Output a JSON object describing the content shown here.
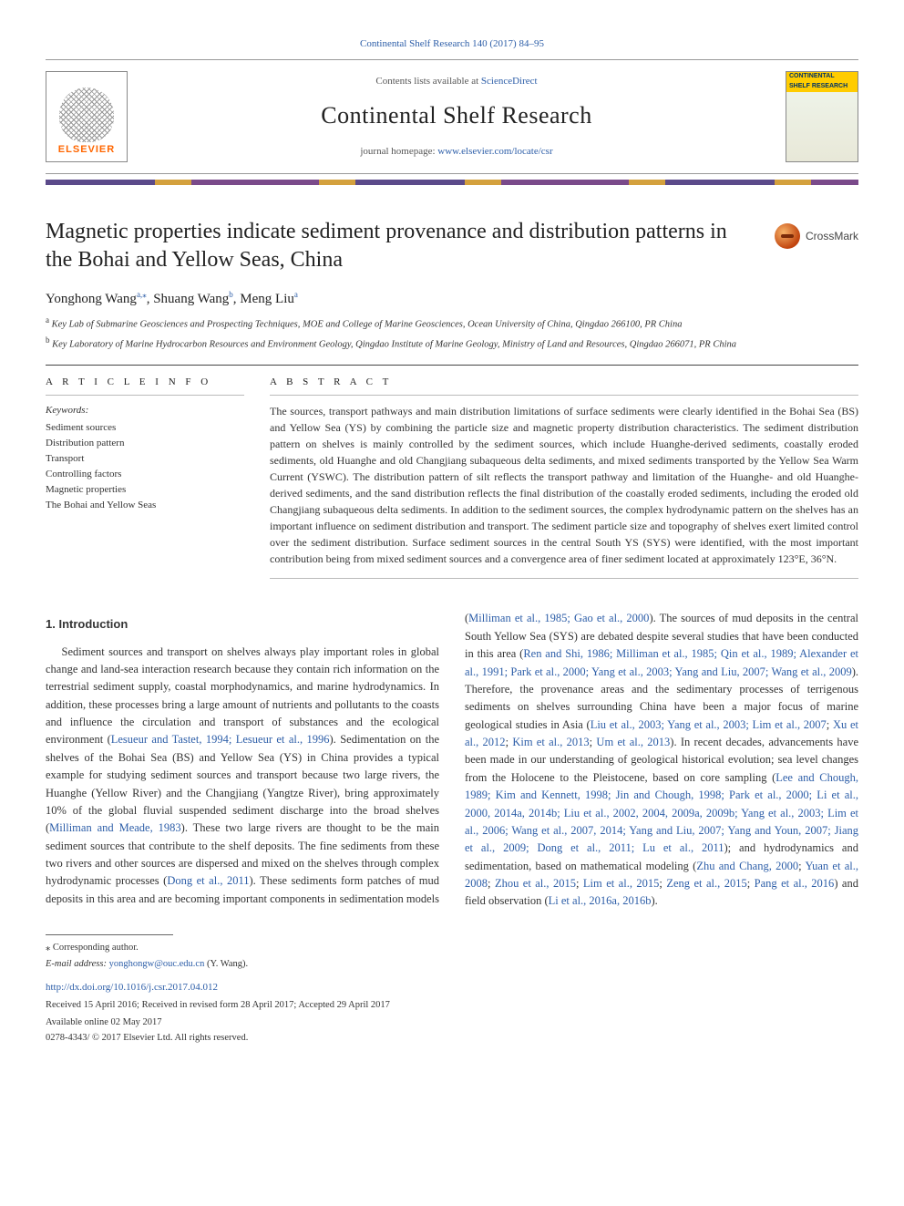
{
  "journal": {
    "citation_top": "Continental Shelf Research 140 (2017) 84–95",
    "contents_prefix": "Contents lists available at ",
    "contents_link": "ScienceDirect",
    "name": "Continental Shelf Research",
    "homepage_prefix": "journal homepage: ",
    "homepage_url": "www.elsevier.com/locate/csr",
    "publisher_brand": "ELSEVIER",
    "cover_label": "CONTINENTAL SHELF RESEARCH",
    "crossmark_label": "CrossMark"
  },
  "article": {
    "title": "Magnetic properties indicate sediment provenance and distribution patterns in the Bohai and Yellow Seas, China",
    "authors_html": "Yonghong Wang<a><sup class=\"ref\">a,</sup></a><a><sup class=\"ref\">⁎</sup></a>, Shuang Wang<a><sup class=\"ref\">b</sup></a>, Meng Liu<a><sup class=\"ref\">a</sup></a>",
    "affiliations": [
      {
        "mark": "a",
        "text": "Key Lab of Submarine Geosciences and Prospecting Techniques, MOE and College of Marine Geosciences, Ocean University of China, Qingdao 266100, PR China"
      },
      {
        "mark": "b",
        "text": "Key Laboratory of Marine Hydrocarbon Resources and Environment Geology, Qingdao Institute of Marine Geology, Ministry of Land and Resources, Qingdao 266071, PR China"
      }
    ],
    "article_info_head": "A R T I C L E   I N F O",
    "abstract_head": "A B S T R A C T",
    "keywords_label": "Keywords:",
    "keywords": [
      "Sediment sources",
      "Distribution pattern",
      "Transport",
      "Controlling factors",
      "Magnetic properties",
      "The Bohai and Yellow Seas"
    ],
    "abstract": "The sources, transport pathways and main distribution limitations of surface sediments were clearly identified in the Bohai Sea (BS) and Yellow Sea (YS) by combining the particle size and magnetic property distribution characteristics. The sediment distribution pattern on shelves is mainly controlled by the sediment sources, which include Huanghe-derived sediments, coastally eroded sediments, old Huanghe and old Changjiang subaqueous delta sediments, and mixed sediments transported by the Yellow Sea Warm Current (YSWC). The distribution pattern of silt reflects the transport pathway and limitation of the Huanghe- and old Huanghe-derived sediments, and the sand distribution reflects the final distribution of the coastally eroded sediments, including the eroded old Changjiang subaqueous delta sediments. In addition to the sediment sources, the complex hydrodynamic pattern on the shelves has an important influence on sediment distribution and transport. The sediment particle size and topography of shelves exert limited control over the sediment distribution. Surface sediment sources in the central South YS (SYS) were identified, with the most important contribution being from mixed sediment sources and a convergence area of finer sediment located at approximately 123°E, 36°N.",
    "section1_head": "1. Introduction",
    "body_p1": "Sediment sources and transport on shelves always play important roles in global change and land-sea interaction research because they contain rich information on the terrestrial sediment supply, coastal morphodynamics, and marine hydrodynamics. In addition, these processes bring a large amount of nutrients and pollutants to the coasts and influence the circulation and transport of substances and the ecological environment (",
    "cite1": "Lesueur and Tastet, 1994; Lesueur et al., 1996",
    "body_p1b": "). Sedimentation on the shelves of the Bohai Sea (BS) and Yellow Sea (YS) in China provides a typical example for studying sediment sources and transport because two large rivers, the Huanghe (Yellow River) and the Changjiang (Yangtze River), bring approximately 10% of the global fluvial suspended sediment discharge into the broad shelves (",
    "cite2": "Milliman and Meade, 1983",
    "body_p1c": "). These two large rivers are thought to be the main sediment sources that contribute to the shelf deposits. The fine sediments from these two rivers and other sources are dispersed and mixed on the shelves through complex hydrodynamic processes (",
    "cite3": "Dong et al., 2011",
    "body_p1d": "). These sediments form patches of mud deposits in this area and are becoming important components in sedimentation ",
    "body_p2a": "models (",
    "cite4": "Milliman et al., 1985; Gao et al., 2000",
    "body_p2b": "). The sources of mud deposits in the central South Yellow Sea (SYS) are debated despite several studies that have been conducted in this area (",
    "cite5": "Ren and Shi, 1986; Milliman et al., 1985; Qin et al., 1989; Alexander et al., 1991; Park et al., 2000; Yang et al., 2003; Yang and Liu, 2007; Wang et al., 2009",
    "body_p2c": "). Therefore, the provenance areas and the sedimentary processes of terrigenous sediments on shelves surrounding China have been a major focus of marine geological studies in Asia (",
    "cite6": "Liu et al., 2003; Yang et al., 2003; Lim et al., 2007",
    "body_p2d": "; ",
    "cite7": "Xu et al., 2012",
    "body_p2e": "; ",
    "cite8": "Kim et al., 2013",
    "body_p2f": "; ",
    "cite9": "Um et al., 2013",
    "body_p2g": "). In recent decades, advancements have been made in our understanding of geological historical evolution; sea level changes from the Holocene to the Pleistocene, based on core sampling (",
    "cite10": "Lee and Chough, 1989; Kim and Kennett, 1998; Jin and Chough, 1998; Park et al., 2000; Li et al., 2000, 2014a, 2014b; Liu et al., 2002, 2004, 2009a, 2009b; Yang et al., 2003; Lim et al., 2006; Wang et al., 2007, 2014; Yang and Liu, 2007; Yang and Youn, 2007; Jiang et al., 2009; Dong et al., 2011; Lu et al., 2011",
    "body_p2h": "); and hydrodynamics and sedimentation, based on mathematical modeling (",
    "cite11": "Zhu and Chang, 2000",
    "body_p2i": "; ",
    "cite12": "Yuan et al., 2008",
    "body_p2j": "; ",
    "cite13": "Zhou et al., 2015",
    "body_p2k": "; ",
    "cite14": "Lim et al., 2015",
    "body_p2l": "; ",
    "cite15": "Zeng et al., 2015",
    "body_p2m": "; ",
    "cite16": "Pang et al., 2016",
    "body_p2n": ") and field observation (",
    "cite17": "Li et al., 2016a, 2016b",
    "body_p2o": ")."
  },
  "footer": {
    "corresponding": "⁎ Corresponding author.",
    "email_label": "E-mail address: ",
    "email": "yonghongw@ouc.edu.cn",
    "email_suffix": " (Y. Wang).",
    "doi": "http://dx.doi.org/10.1016/j.csr.2017.04.012",
    "history": "Received 15 April 2016; Received in revised form 28 April 2017; Accepted 29 April 2017",
    "online": "Available online 02 May 2017",
    "copyright": "0278-4343/ © 2017 Elsevier Ltd. All rights reserved."
  },
  "colors": {
    "link": "#2d5ea8",
    "publisher_orange": "#ff6600",
    "text": "#333333",
    "rule": "#444444"
  }
}
